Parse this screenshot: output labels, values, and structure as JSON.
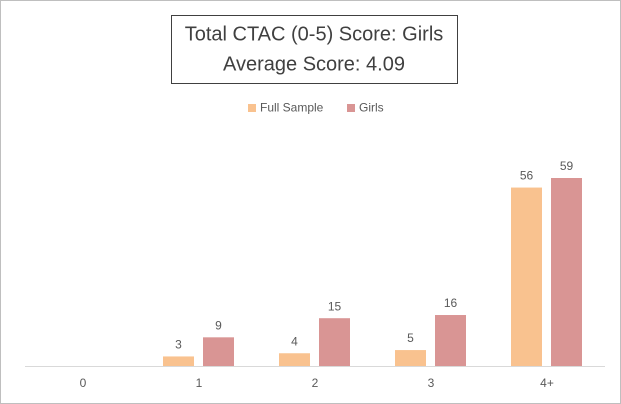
{
  "chart_data": {
    "type": "bar",
    "title": "Total CTAC (0-5) Score: Girls",
    "subtitle": "Average Score: 4.09",
    "categories": [
      "0",
      "1",
      "2",
      "3",
      "4+"
    ],
    "series": [
      {
        "name": "Full Sample",
        "color": "#f9c28f",
        "values": [
          null,
          3,
          4,
          5,
          56
        ]
      },
      {
        "name": "Girls",
        "color": "#d99594",
        "values": [
          null,
          9,
          15,
          16,
          59
        ]
      }
    ],
    "legend": "top"
  }
}
